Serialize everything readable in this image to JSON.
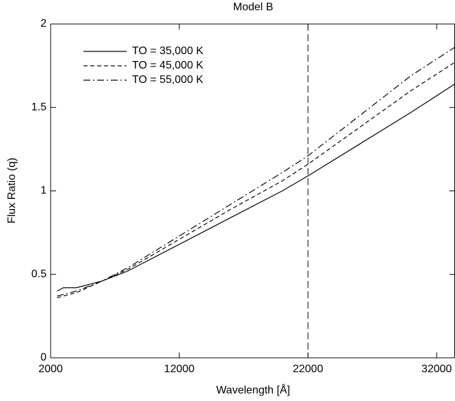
{
  "chart_data": {
    "type": "line",
    "title": "Model B",
    "xlabel": "Wavelength [Å]",
    "ylabel": "Flux Ratio (q)",
    "x": [
      2500,
      3000,
      4000,
      6000,
      8000,
      12000,
      16000,
      20000,
      22000,
      26000,
      30000,
      33400
    ],
    "series": [
      {
        "name": "TO = 35,000 K",
        "color": "#000000",
        "style": "solid",
        "values": [
          0.4,
          0.42,
          0.42,
          0.46,
          0.52,
          0.68,
          0.84,
          1.0,
          1.09,
          1.28,
          1.47,
          1.64
        ]
      },
      {
        "name": "TO = 45,000 K",
        "color": "#000000",
        "style": "dashed",
        "values": [
          0.36,
          0.37,
          0.39,
          0.46,
          0.53,
          0.71,
          0.89,
          1.06,
          1.16,
          1.38,
          1.6,
          1.77
        ]
      },
      {
        "name": "TO = 55,000 K",
        "color": "#000000",
        "style": "dashdot",
        "values": [
          0.37,
          0.38,
          0.4,
          0.46,
          0.54,
          0.73,
          0.92,
          1.11,
          1.21,
          1.45,
          1.69,
          1.86
        ]
      }
    ],
    "vline": 22000,
    "xlim": [
      2000,
      33400
    ],
    "xticks": [
      2000,
      12000,
      22000,
      32000
    ],
    "ylim": [
      0,
      2
    ],
    "yticks": [
      0,
      0.5,
      1,
      1.5,
      2
    ],
    "legend": "upper left",
    "grid": false
  }
}
